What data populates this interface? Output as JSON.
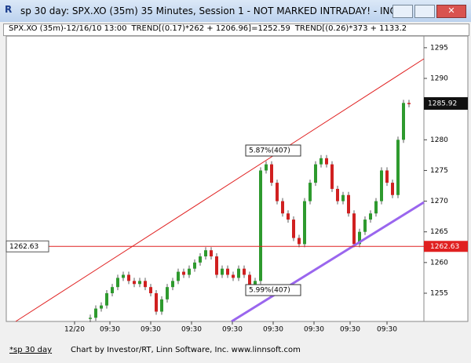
{
  "window": {
    "title": "sp 30 day: SPX.XO (35m) 35 Minutes, Session 1 - NOT MARKED INTRADAY! - INC...",
    "tab": "*sp 30 day",
    "footer": "Chart by Investor/RT, Linn Software, Inc. www.linnsoft.com"
  },
  "info_bar": [
    "SPX.XO (35m)-12/16/10 13:00",
    "TREND[(0.17)*262 + 1206.96]=1252.59",
    "TREND[(0.26)*373 + 1133.2"
  ],
  "chart_data": {
    "type": "candlestick",
    "x_labels": [
      "12/20",
      "09:30",
      "09:30",
      "09:30",
      "09:30",
      "09:30",
      "09:30",
      "09:30",
      "09:30"
    ],
    "closes": [
      1251,
      1252.5,
      1253,
      1255,
      1256,
      1257.5,
      1258,
      1257,
      1256.5,
      1257,
      1256,
      1255,
      1252,
      1254,
      1256,
      1257,
      1258.5,
      1258,
      1259,
      1260,
      1261,
      1262,
      1261,
      1258,
      1259,
      1258,
      1257.5,
      1259,
      1258,
      1256,
      1257,
      1275,
      1276,
      1273,
      1270,
      1268,
      1267,
      1264,
      1263,
      1270,
      1273,
      1276,
      1277,
      1276,
      1272,
      1270,
      1271,
      1268,
      1263,
      1265,
      1267,
      1268,
      1270,
      1275,
      1273,
      1271,
      1280,
      1286,
      1285.92
    ],
    "up_color": "#2e9a2e",
    "down_color": "#d02020",
    "ylim": [
      1250.4,
      1296.9
    ],
    "yticks": [
      1295,
      1290,
      1280,
      1275,
      1270,
      1265,
      1260,
      1255
    ],
    "level": 1262.63,
    "last": 1285.92,
    "annotations": [
      "5.87%(407)",
      "5.99%(407)"
    ]
  }
}
